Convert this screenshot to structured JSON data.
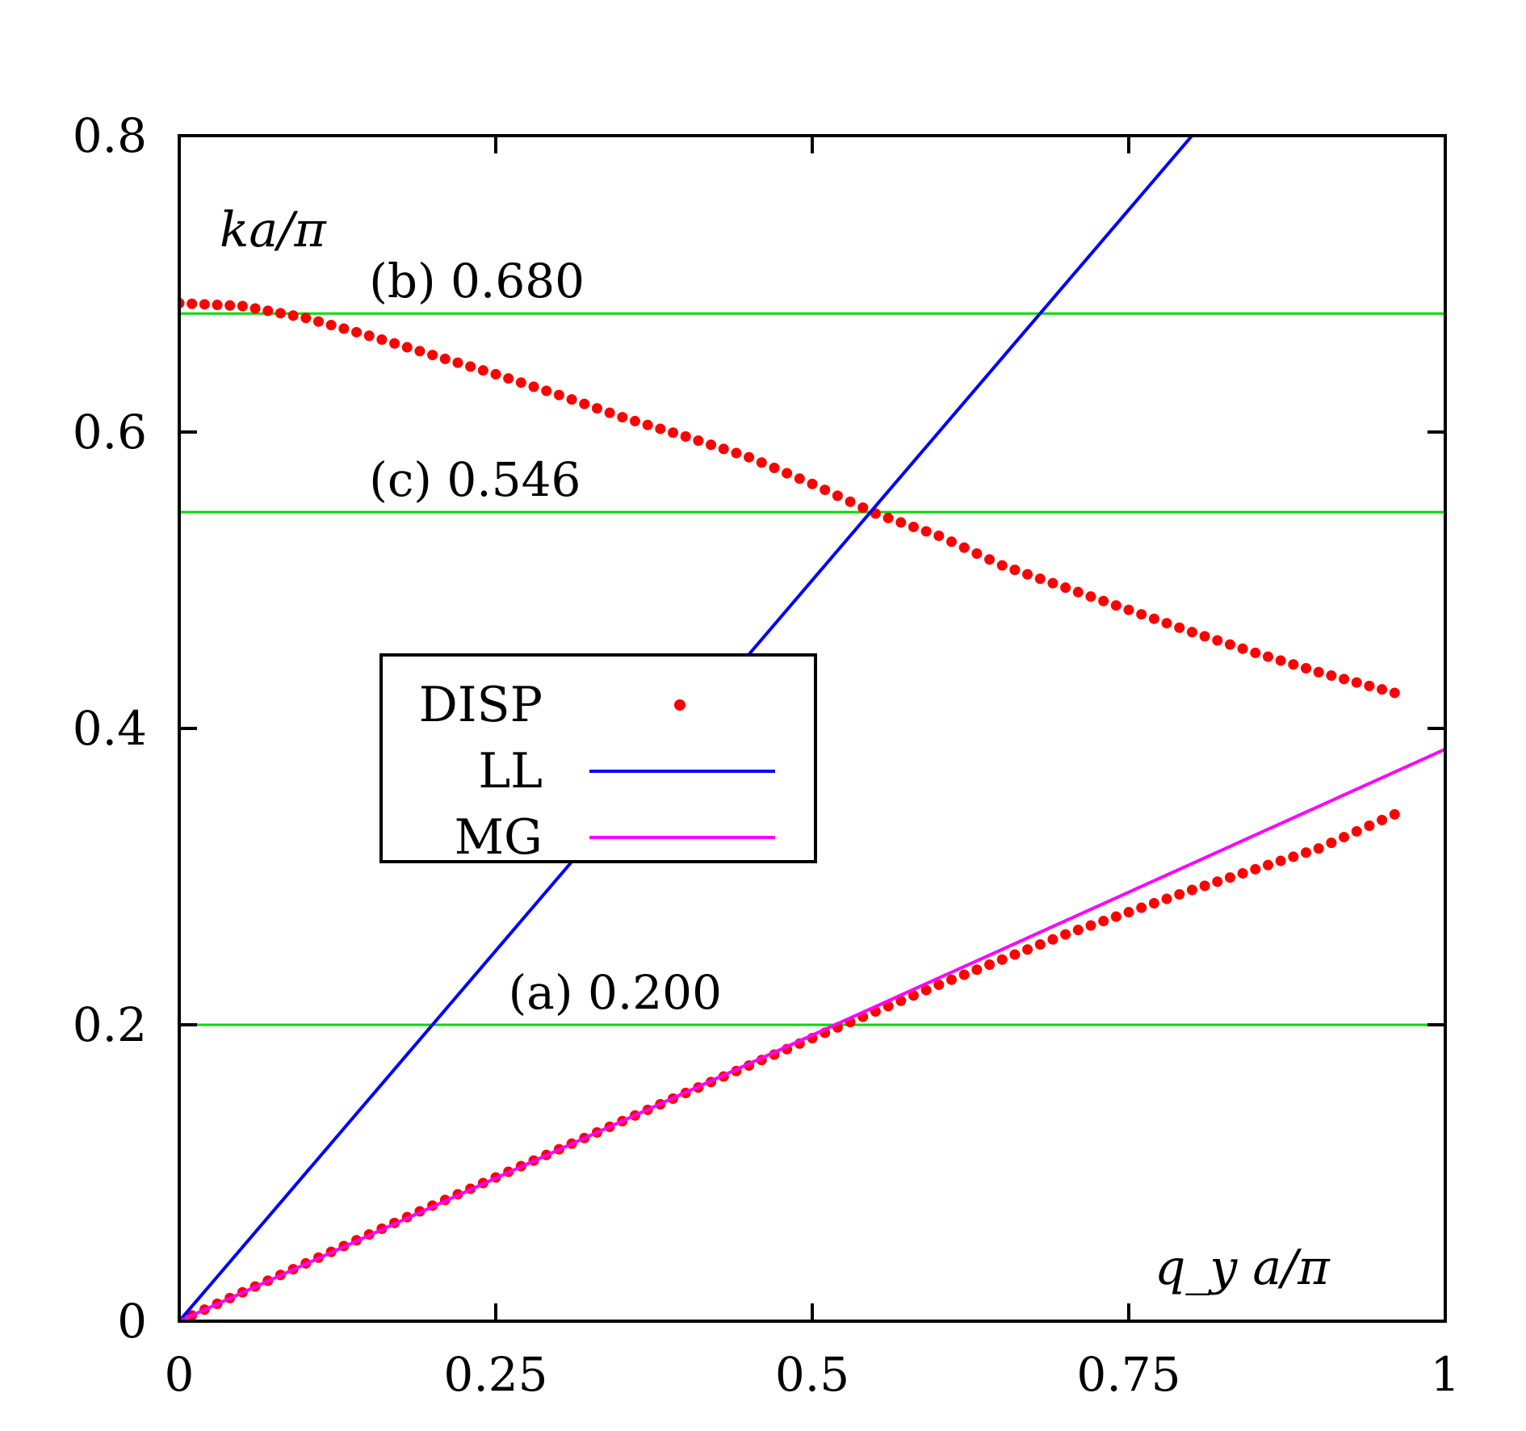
{
  "chart_data": {
    "type": "line",
    "xlabel": "q_y a/π",
    "ylabel": "ka/π",
    "xlim": [
      0,
      1
    ],
    "ylim": [
      0,
      0.8
    ],
    "x_ticks": [
      0,
      0.25,
      0.5,
      0.75,
      1
    ],
    "x_tick_labels": [
      "0",
      "0.25",
      "0.5",
      "0.75",
      "1"
    ],
    "y_ticks": [
      0,
      0.2,
      0.4,
      0.6,
      0.8
    ],
    "y_tick_labels": [
      "0",
      "0.2",
      "0.4",
      "0.6",
      "0.8"
    ],
    "grid": false,
    "legend_position": "center-left",
    "horizontal_lines": [
      {
        "y": 0.2,
        "label": "(a) 0.200",
        "label_x": 0.26,
        "color": "#00dd00"
      },
      {
        "y": 0.68,
        "label": "(b) 0.680",
        "label_x": 0.15,
        "color": "#00dd00"
      },
      {
        "y": 0.546,
        "label": "(c) 0.546",
        "label_x": 0.15,
        "color": "#00dd00"
      }
    ],
    "series": [
      {
        "name": "DISP",
        "style": "points",
        "color": "#ff0000",
        "branches": [
          {
            "x": [
              0.0,
              0.1,
              0.2,
              0.3,
              0.4,
              0.5,
              0.6,
              0.7,
              0.8,
              0.9,
              0.96
            ],
            "y": [
              0.0,
              0.039,
              0.078,
              0.116,
              0.154,
              0.191,
              0.227,
              0.261,
              0.291,
              0.319,
              0.342
            ]
          },
          {
            "x": [
              0.0,
              0.05,
              0.1,
              0.15,
              0.2,
              0.25,
              0.3,
              0.35,
              0.4,
              0.45,
              0.5,
              0.55,
              0.6,
              0.65,
              0.7,
              0.75,
              0.8,
              0.85,
              0.9,
              0.96
            ],
            "y": [
              0.687,
              0.685,
              0.677,
              0.665,
              0.652,
              0.639,
              0.625,
              0.61,
              0.597,
              0.583,
              0.565,
              0.545,
              0.53,
              0.51,
              0.495,
              0.48,
              0.465,
              0.451,
              0.438,
              0.424
            ]
          }
        ]
      },
      {
        "name": "LL",
        "style": "line",
        "color": "#0000ff",
        "x": [
          0,
          0.8
        ],
        "y": [
          0,
          0.8
        ]
      },
      {
        "name": "MG",
        "style": "line",
        "color": "#ff00ff",
        "x": [
          0,
          1
        ],
        "y": [
          0,
          0.386
        ]
      }
    ]
  }
}
